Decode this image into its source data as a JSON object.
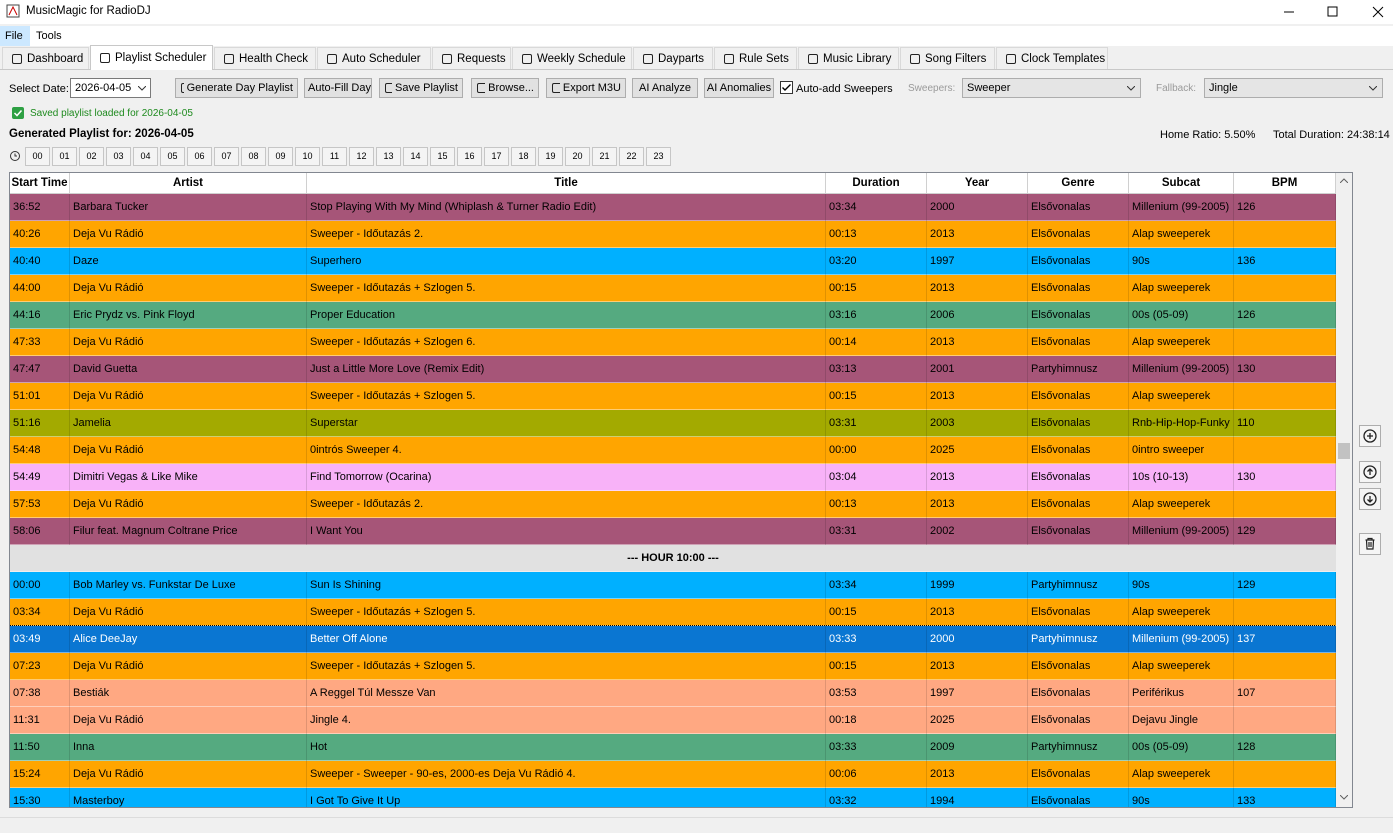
{
  "window": {
    "title": "MusicMagic for RadioDJ"
  },
  "menu": [
    "File",
    "Tools"
  ],
  "tabs": [
    "Dashboard",
    "Playlist Scheduler",
    "Health Check",
    "Auto Scheduler",
    "Requests",
    "Weekly Schedule",
    "Dayparts",
    "Rule Sets",
    "Music Library",
    "Song Filters",
    "Clock Templates"
  ],
  "active_tab": 1,
  "toolbar": {
    "date_label": "Select Date:",
    "date": "2026-04-05",
    "buttons": [
      "Generate Day Playlist",
      "Auto-Fill Day",
      "Save Playlist",
      "Browse...",
      "Export M3U",
      "AI Analyze",
      "AI Anomalies"
    ],
    "checkbox": "Auto-add Sweepers",
    "checked": true,
    "sweepers_label": "Sweepers:",
    "sweepers": "Sweeper",
    "fallback_label": "Fallback:",
    "fallback": "Jingle"
  },
  "status": "Saved playlist loaded for 2026-04-05",
  "summary": {
    "heading": "Generated Playlist for: 2026-04-05",
    "home_ratio": "Home Ratio: 5.50%",
    "total_duration": "Total Duration: 24:38:14"
  },
  "hours": [
    "00",
    "01",
    "02",
    "03",
    "04",
    "05",
    "06",
    "07",
    "08",
    "09",
    "10",
    "11",
    "12",
    "13",
    "14",
    "15",
    "16",
    "17",
    "18",
    "19",
    "20",
    "21",
    "22",
    "23"
  ],
  "table": {
    "columns": [
      "Start Time",
      "Artist",
      "Title",
      "Duration",
      "Year",
      "Genre",
      "Subcat",
      "BPM"
    ],
    "rows": [
      {
        "color": "#a65578",
        "cells": [
          "36:52",
          "Barbara Tucker",
          "Stop Playing With My Mind (Whiplash & Turner Radio Edit)",
          "03:34",
          2000,
          "Elsővonalas",
          "Millenium (99-2005)",
          126
        ]
      },
      {
        "color": "#ffa500",
        "cells": [
          "40:26",
          "Deja Vu Rádió",
          "Sweeper - Időutazás 2.",
          "00:13",
          2013,
          "Elsővonalas",
          "Alap sweeperek",
          null
        ]
      },
      {
        "color": "#00b0ff",
        "cells": [
          "40:40",
          "Daze",
          "Superhero",
          "03:20",
          1997,
          "Elsővonalas",
          "90s",
          136
        ]
      },
      {
        "color": "#ffa500",
        "cells": [
          "44:00",
          "Deja Vu Rádió",
          "Sweeper - Időutazás + Szlogen 5.",
          "00:15",
          2013,
          "Elsővonalas",
          "Alap sweeperek",
          null
        ]
      },
      {
        "color": "#55aa80",
        "cells": [
          "44:16",
          "Eric Prydz vs. Pink Floyd",
          "Proper Education",
          "03:16",
          2006,
          "Elsővonalas",
          "00s (05-09)",
          126
        ]
      },
      {
        "color": "#ffa500",
        "cells": [
          "47:33",
          "Deja Vu Rádió",
          "Sweeper - Időutazás + Szlogen 6.",
          "00:14",
          2013,
          "Elsővonalas",
          "Alap sweeperek",
          null
        ]
      },
      {
        "color": "#a65578",
        "cells": [
          "47:47",
          "David Guetta",
          "Just a Little More Love (Remix Edit)",
          "03:13",
          2001,
          "Partyhimnusz",
          "Millenium (99-2005)",
          130
        ]
      },
      {
        "color": "#ffa500",
        "cells": [
          "51:01",
          "Deja Vu Rádió",
          "Sweeper - Időutazás + Szlogen 5.",
          "00:15",
          2013,
          "Elsővonalas",
          "Alap sweeperek",
          null
        ]
      },
      {
        "color": "#a3aa00",
        "cells": [
          "51:16",
          "Jamelia",
          "Superstar",
          "03:31",
          2003,
          "Elsővonalas",
          "Rnb-Hip-Hop-Funky",
          110
        ]
      },
      {
        "color": "#ffa500",
        "cells": [
          "54:48",
          "Deja Vu Rádió",
          "0intrós Sweeper 4.",
          "00:00",
          2025,
          "Elsővonalas",
          "0intro sweeper",
          null
        ]
      },
      {
        "color": "#f8b2f8",
        "cells": [
          "54:49",
          "Dimitri Vegas & Like Mike",
          "Find Tomorrow (Ocarina)",
          "03:04",
          2013,
          "Elsővonalas",
          "10s (10-13)",
          130
        ]
      },
      {
        "color": "#ffa500",
        "cells": [
          "57:53",
          "Deja Vu Rádió",
          "Sweeper - Időutazás 2.",
          "00:13",
          2013,
          "Elsővonalas",
          "Alap sweeperek",
          null
        ]
      },
      {
        "color": "#a65578",
        "cells": [
          "58:06",
          "Filur feat. Magnum Coltrane Price",
          "I Want You",
          "03:31",
          2002,
          "Elsővonalas",
          "Millenium (99-2005)",
          129
        ]
      },
      {
        "color": "#e1e1e1",
        "separator": "--- HOUR 10:00 ---"
      },
      {
        "color": "#00b0ff",
        "cells": [
          "00:00",
          "Bob Marley vs. Funkstar De Luxe",
          "Sun Is Shining",
          "03:34",
          1999,
          "Partyhimnusz",
          "90s",
          129
        ]
      },
      {
        "color": "#ffa500",
        "cells": [
          "03:34",
          "Deja Vu Rádió",
          "Sweeper - Időutazás + Szlogen 5.",
          "00:15",
          2013,
          "Elsővonalas",
          "Alap sweeperek",
          null
        ]
      },
      {
        "color": "#0a76d2",
        "cells": [
          "03:49",
          "Alice DeeJay",
          "Better Off Alone",
          "03:33",
          2000,
          "Partyhimnusz",
          "Millenium (99-2005)",
          137
        ]
      },
      {
        "color": "#ffa500",
        "cells": [
          "07:23",
          "Deja Vu Rádió",
          "Sweeper - Időutazás + Szlogen 5.",
          "00:15",
          2013,
          "Elsővonalas",
          "Alap sweeperek",
          null
        ]
      },
      {
        "color": "#ffa882",
        "cells": [
          "07:38",
          "Bestiák",
          "A Reggel Túl Messze Van",
          "03:53",
          1997,
          "Elsővonalas",
          "Periférikus",
          107
        ]
      },
      {
        "color": "#ffa882",
        "cells": [
          "11:31",
          "Deja Vu Rádió",
          "Jingle 4.",
          "00:18",
          2025,
          "Elsővonalas",
          "Dejavu Jingle",
          null
        ]
      },
      {
        "color": "#55aa80",
        "cells": [
          "11:50",
          "Inna",
          "Hot",
          "03:33",
          2009,
          "Partyhimnusz",
          "00s (05-09)",
          128
        ]
      },
      {
        "color": "#ffa500",
        "cells": [
          "15:24",
          "Deja Vu Rádió",
          "Sweeper - Sweeper - 90-es, 2000-es Deja Vu Rádió 4.",
          "00:06",
          2013,
          "Elsővonalas",
          "Alap sweeperek",
          null
        ]
      },
      {
        "color": "#00b0ff",
        "cells": [
          "15:30",
          "Masterboy",
          "I Got To Give It Up",
          "03:32",
          1994,
          "Elsővonalas",
          "90s",
          133
        ]
      }
    ]
  }
}
